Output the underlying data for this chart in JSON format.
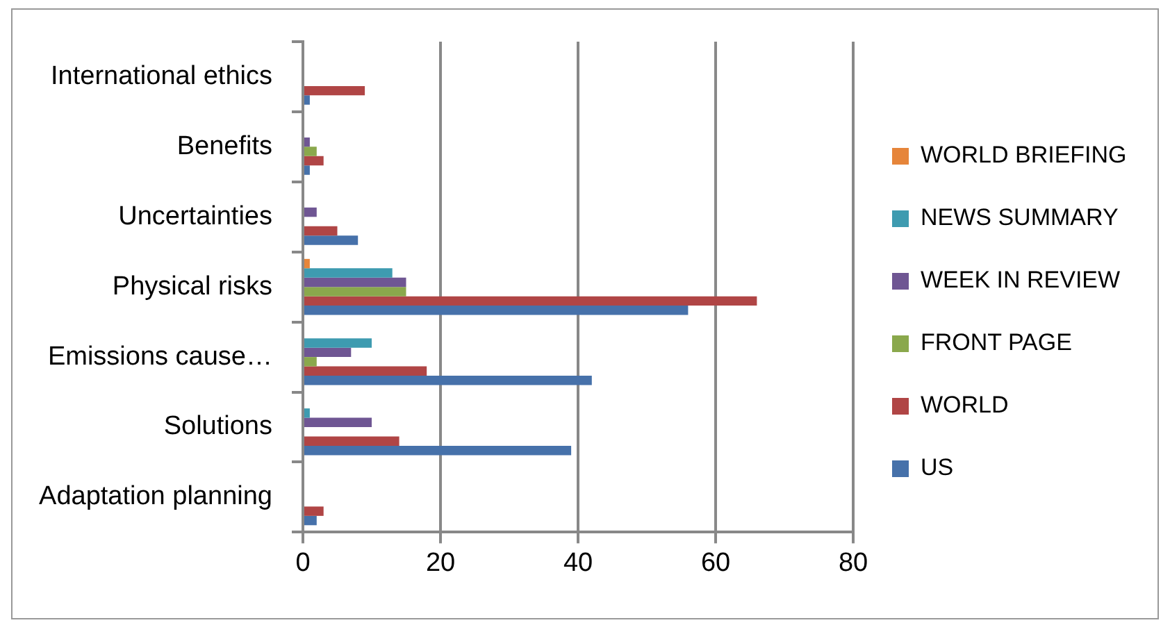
{
  "chart_data": {
    "type": "bar",
    "orientation": "horizontal",
    "categories": [
      "International ethics",
      "Benefits",
      "Uncertainties",
      "Physical risks",
      "Emissions cause…",
      "Solutions",
      "Adaptation planning"
    ],
    "series": [
      {
        "name": "WORLD BRIEFING",
        "color": "#e6853a",
        "values": [
          0,
          0,
          0,
          1,
          0,
          0,
          0
        ]
      },
      {
        "name": "NEWS SUMMARY",
        "color": "#3e9bb0",
        "values": [
          0,
          0,
          0,
          13,
          10,
          1,
          0
        ]
      },
      {
        "name": "WEEK IN REVIEW",
        "color": "#6f5693",
        "values": [
          0,
          1,
          2,
          15,
          7,
          10,
          0
        ]
      },
      {
        "name": "FRONT PAGE",
        "color": "#8aa84c",
        "values": [
          0,
          2,
          0,
          15,
          2,
          0,
          0
        ]
      },
      {
        "name": "WORLD",
        "color": "#b04545",
        "values": [
          9,
          3,
          5,
          66,
          18,
          14,
          3
        ]
      },
      {
        "name": "US",
        "color": "#4671aa",
        "values": [
          1,
          1,
          8,
          56,
          42,
          39,
          2
        ]
      }
    ],
    "xlim": [
      0,
      80
    ],
    "xticks": [
      0,
      20,
      40,
      60,
      80
    ],
    "grid": "x",
    "legend": "right"
  }
}
